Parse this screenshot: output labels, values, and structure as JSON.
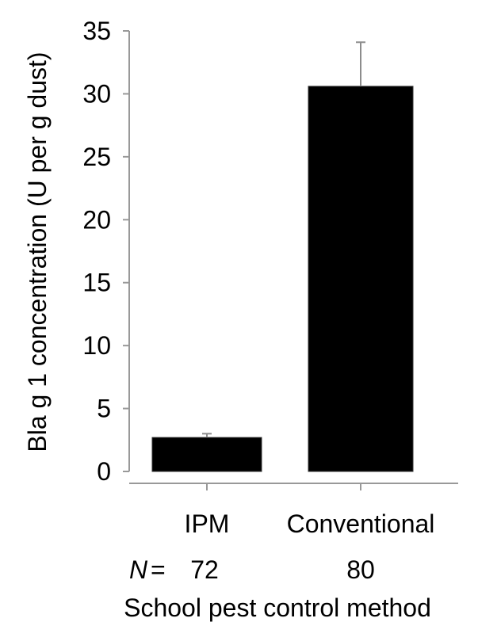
{
  "chart_data": {
    "type": "bar",
    "categories": [
      "IPM",
      "Conventional"
    ],
    "values": [
      2.7,
      30.6
    ],
    "error": [
      0.3,
      3.5
    ],
    "sample_sizes": [
      "72",
      "80"
    ],
    "n_prefix": "N",
    "n_equals": "=",
    "xlabel": "School pest control method",
    "ylabel": "Bla g 1 concentration (U per g dust)",
    "ylim": [
      0,
      35
    ],
    "yticks": [
      0,
      5,
      10,
      15,
      20,
      25,
      30,
      35
    ],
    "grid": false,
    "bar_color": "#000000",
    "error_bar_color": "#8c8c8c"
  }
}
